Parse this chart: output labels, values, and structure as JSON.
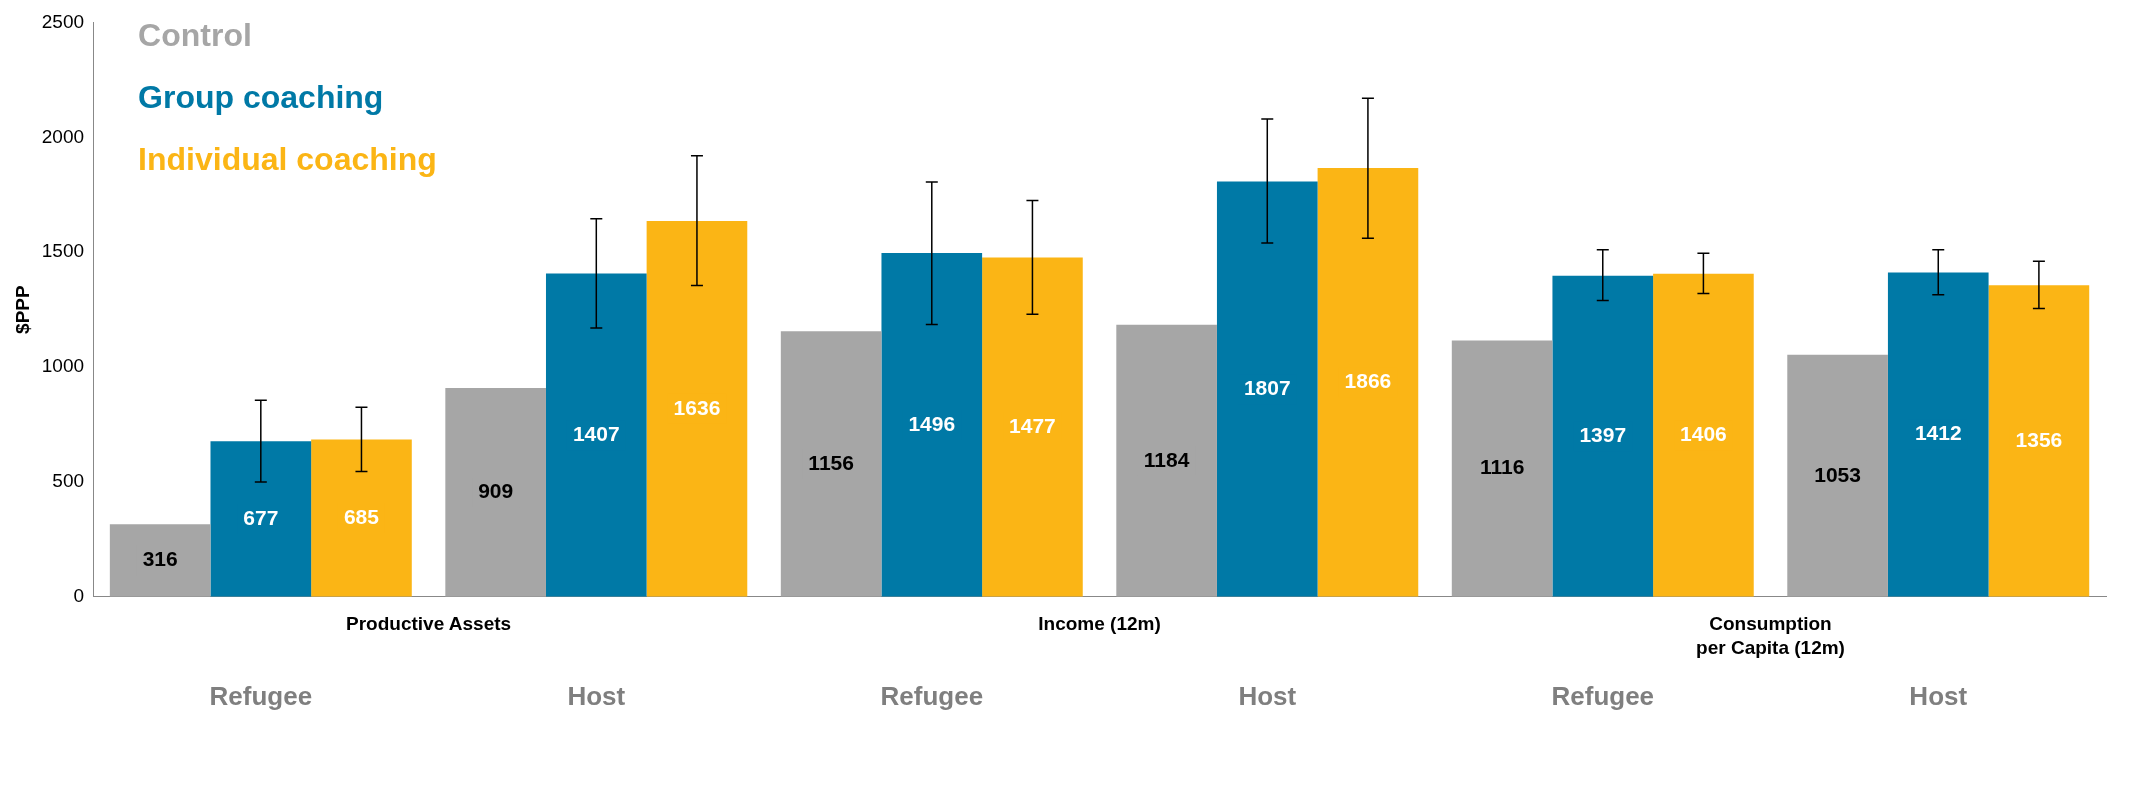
{
  "chart_data": {
    "type": "bar",
    "ylabel": "$PPP",
    "categories": [
      "Refugee",
      "Host",
      "Refugee",
      "Host",
      "Refugee",
      "Host"
    ],
    "annotations": [
      "Productive Assets",
      "Income (12m)",
      "Consumption\nper Capita (12m)"
    ],
    "series": [
      {
        "name": "Control",
        "color": "#a6a6a6",
        "values": [
          316,
          909,
          1156,
          1184,
          1116,
          1053
        ]
      },
      {
        "name": "Group coaching",
        "color": "#0079a6",
        "values": [
          677,
          1407,
          1496,
          1807,
          1397,
          1412
        ],
        "errors": [
          [
            500,
            855
          ],
          [
            1170,
            1645
          ],
          [
            1185,
            1805
          ],
          [
            1540,
            2080
          ],
          [
            1290,
            1510
          ],
          [
            1315,
            1510
          ]
        ]
      },
      {
        "name": "Individual coaching",
        "color": "#fbb515",
        "values": [
          685,
          1636,
          1477,
          1866,
          1406,
          1356
        ],
        "errors": [
          [
            545,
            825
          ],
          [
            1355,
            1920
          ],
          [
            1230,
            1725
          ],
          [
            1560,
            2170
          ],
          [
            1320,
            1495
          ],
          [
            1255,
            1460
          ]
        ]
      }
    ],
    "ylim": [
      0,
      2500
    ],
    "yticks": [
      0,
      500,
      1000,
      1500,
      2000,
      2500
    ],
    "grid": false,
    "legend": "top left",
    "data_labels": true
  }
}
